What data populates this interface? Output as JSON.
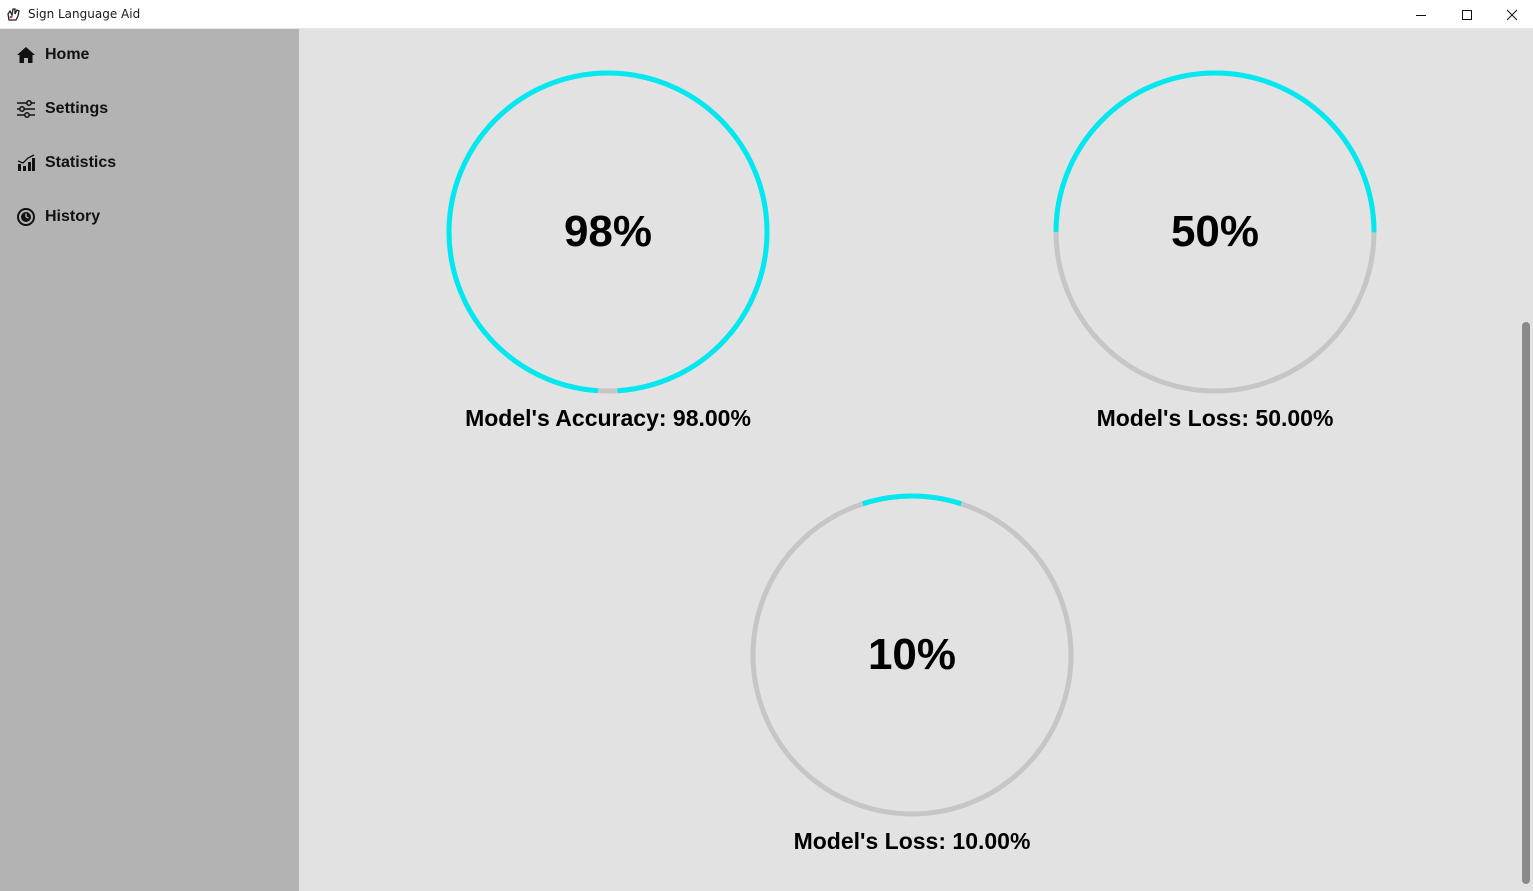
{
  "window": {
    "title": "Sign Language Aid",
    "icon": "hand-sign-icon"
  },
  "sidebar": {
    "items": [
      {
        "label": "Home",
        "icon": "home-icon"
      },
      {
        "label": "Settings",
        "icon": "sliders-icon"
      },
      {
        "label": "Statistics",
        "icon": "bar-chart-icon"
      },
      {
        "label": "History",
        "icon": "history-icon"
      }
    ]
  },
  "gauges": [
    {
      "percent_text": "98%",
      "value": 0.98,
      "caption": "Model's Accuracy: 98.00%"
    },
    {
      "percent_text": "50%",
      "value": 0.5,
      "caption": "Model's Loss: 50.00%"
    },
    {
      "percent_text": "10%",
      "value": 0.1,
      "caption": "Model's Loss: 10.00%"
    }
  ],
  "colors": {
    "progress": "#00e8f0",
    "track": "#c6c6c6",
    "sidebar": "#b3b3b3",
    "background": "#e2e2e2"
  }
}
